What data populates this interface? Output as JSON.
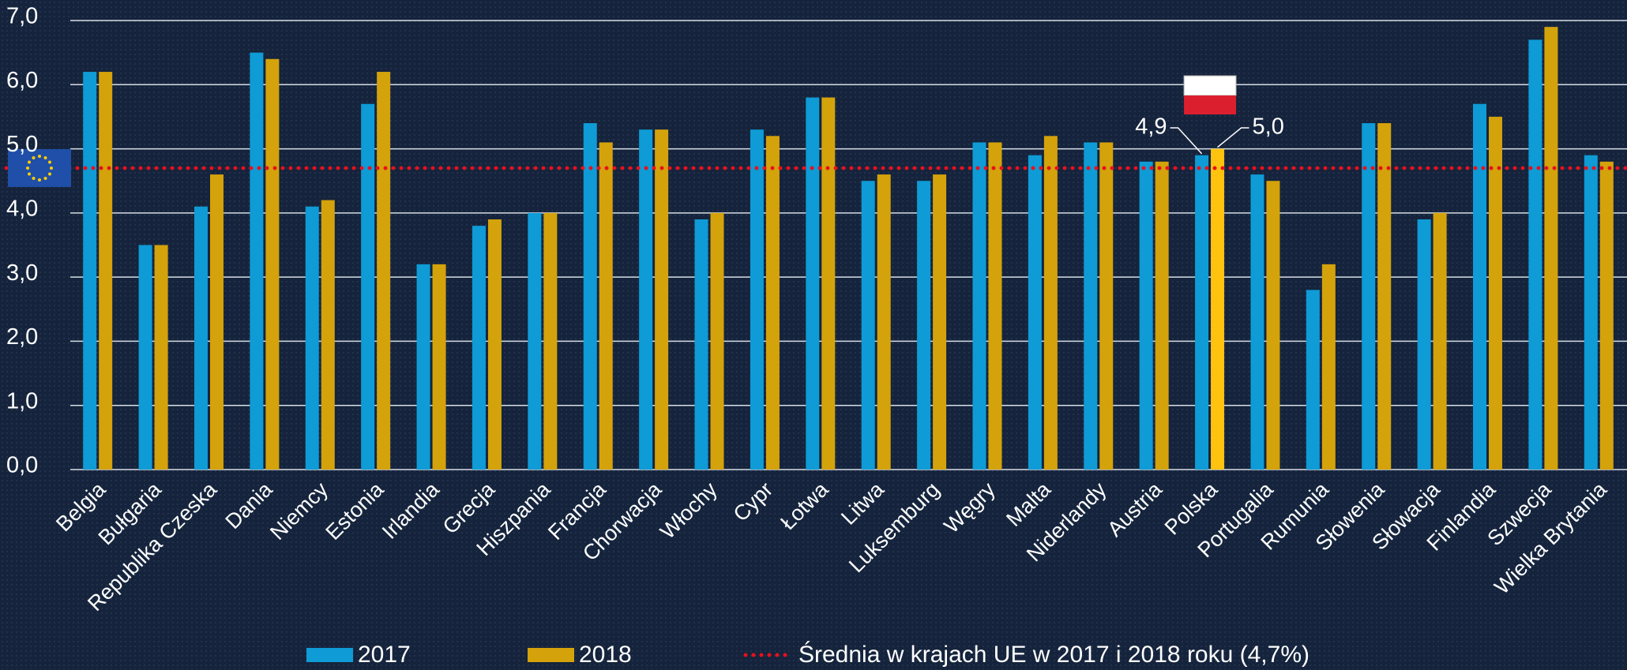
{
  "chart_data": {
    "type": "bar",
    "categories": [
      "Belgia",
      "Bułgaria",
      "Republika Czeska",
      "Dania",
      "Niemcy",
      "Estonia",
      "Irlandia",
      "Grecja",
      "Hiszpania",
      "Francja",
      "Chorwacja",
      "Włochy",
      "Cypr",
      "Łotwa",
      "Litwa",
      "Luksemburg",
      "Węgry",
      "Malta",
      "Niderlandy",
      "Austria",
      "Polska",
      "Portugalia",
      "Rumunia",
      "Słowenia",
      "Słowacja",
      "Finlandia",
      "Szwecja",
      "Wielka Brytania"
    ],
    "series": [
      {
        "name": "2017",
        "color": "#0e9bd6",
        "values": [
          6.2,
          3.5,
          4.1,
          6.5,
          4.1,
          5.7,
          3.2,
          3.8,
          4.0,
          5.4,
          5.3,
          3.9,
          5.3,
          5.8,
          4.5,
          4.5,
          5.1,
          4.9,
          5.1,
          4.8,
          4.9,
          4.6,
          2.8,
          5.4,
          3.9,
          5.7,
          6.7,
          4.9
        ],
        "value_labels": [
          null,
          null,
          null,
          null,
          null,
          null,
          null,
          null,
          null,
          null,
          null,
          null,
          null,
          null,
          null,
          null,
          null,
          null,
          null,
          null,
          "4,9",
          null,
          null,
          null,
          null,
          null,
          null,
          null
        ]
      },
      {
        "name": "2018",
        "color": "#d4a20a",
        "highlight_color": "#ffc20e",
        "values": [
          6.2,
          3.5,
          4.6,
          6.4,
          4.2,
          6.2,
          3.2,
          3.9,
          4.0,
          5.1,
          5.3,
          4.0,
          5.2,
          5.8,
          4.6,
          4.6,
          5.1,
          5.2,
          5.1,
          4.8,
          5.0,
          4.5,
          3.2,
          5.4,
          4.0,
          5.5,
          6.9,
          4.8
        ],
        "value_labels": [
          null,
          null,
          null,
          null,
          null,
          null,
          null,
          null,
          null,
          null,
          null,
          null,
          null,
          null,
          null,
          null,
          null,
          null,
          null,
          null,
          "5,0",
          null,
          null,
          null,
          null,
          null,
          null,
          null
        ]
      }
    ],
    "reference_line": {
      "name": "Średnia w krajach UE w 2017 i 2018 roku (4,7%)",
      "value": 4.7,
      "color": "#e8101e"
    },
    "ylim": [
      0,
      7
    ],
    "yticks": [
      {
        "value": 0,
        "label": "0,0"
      },
      {
        "value": 1,
        "label": "1,0"
      },
      {
        "value": 2,
        "label": "2,0"
      },
      {
        "value": 3,
        "label": "3,0"
      },
      {
        "value": 4,
        "label": "4,0"
      },
      {
        "value": 5,
        "label": "5,0"
      },
      {
        "value": 6,
        "label": "6,0"
      },
      {
        "value": 7,
        "label": "7,0"
      }
    ],
    "grid": true,
    "legend": "bottom"
  }
}
